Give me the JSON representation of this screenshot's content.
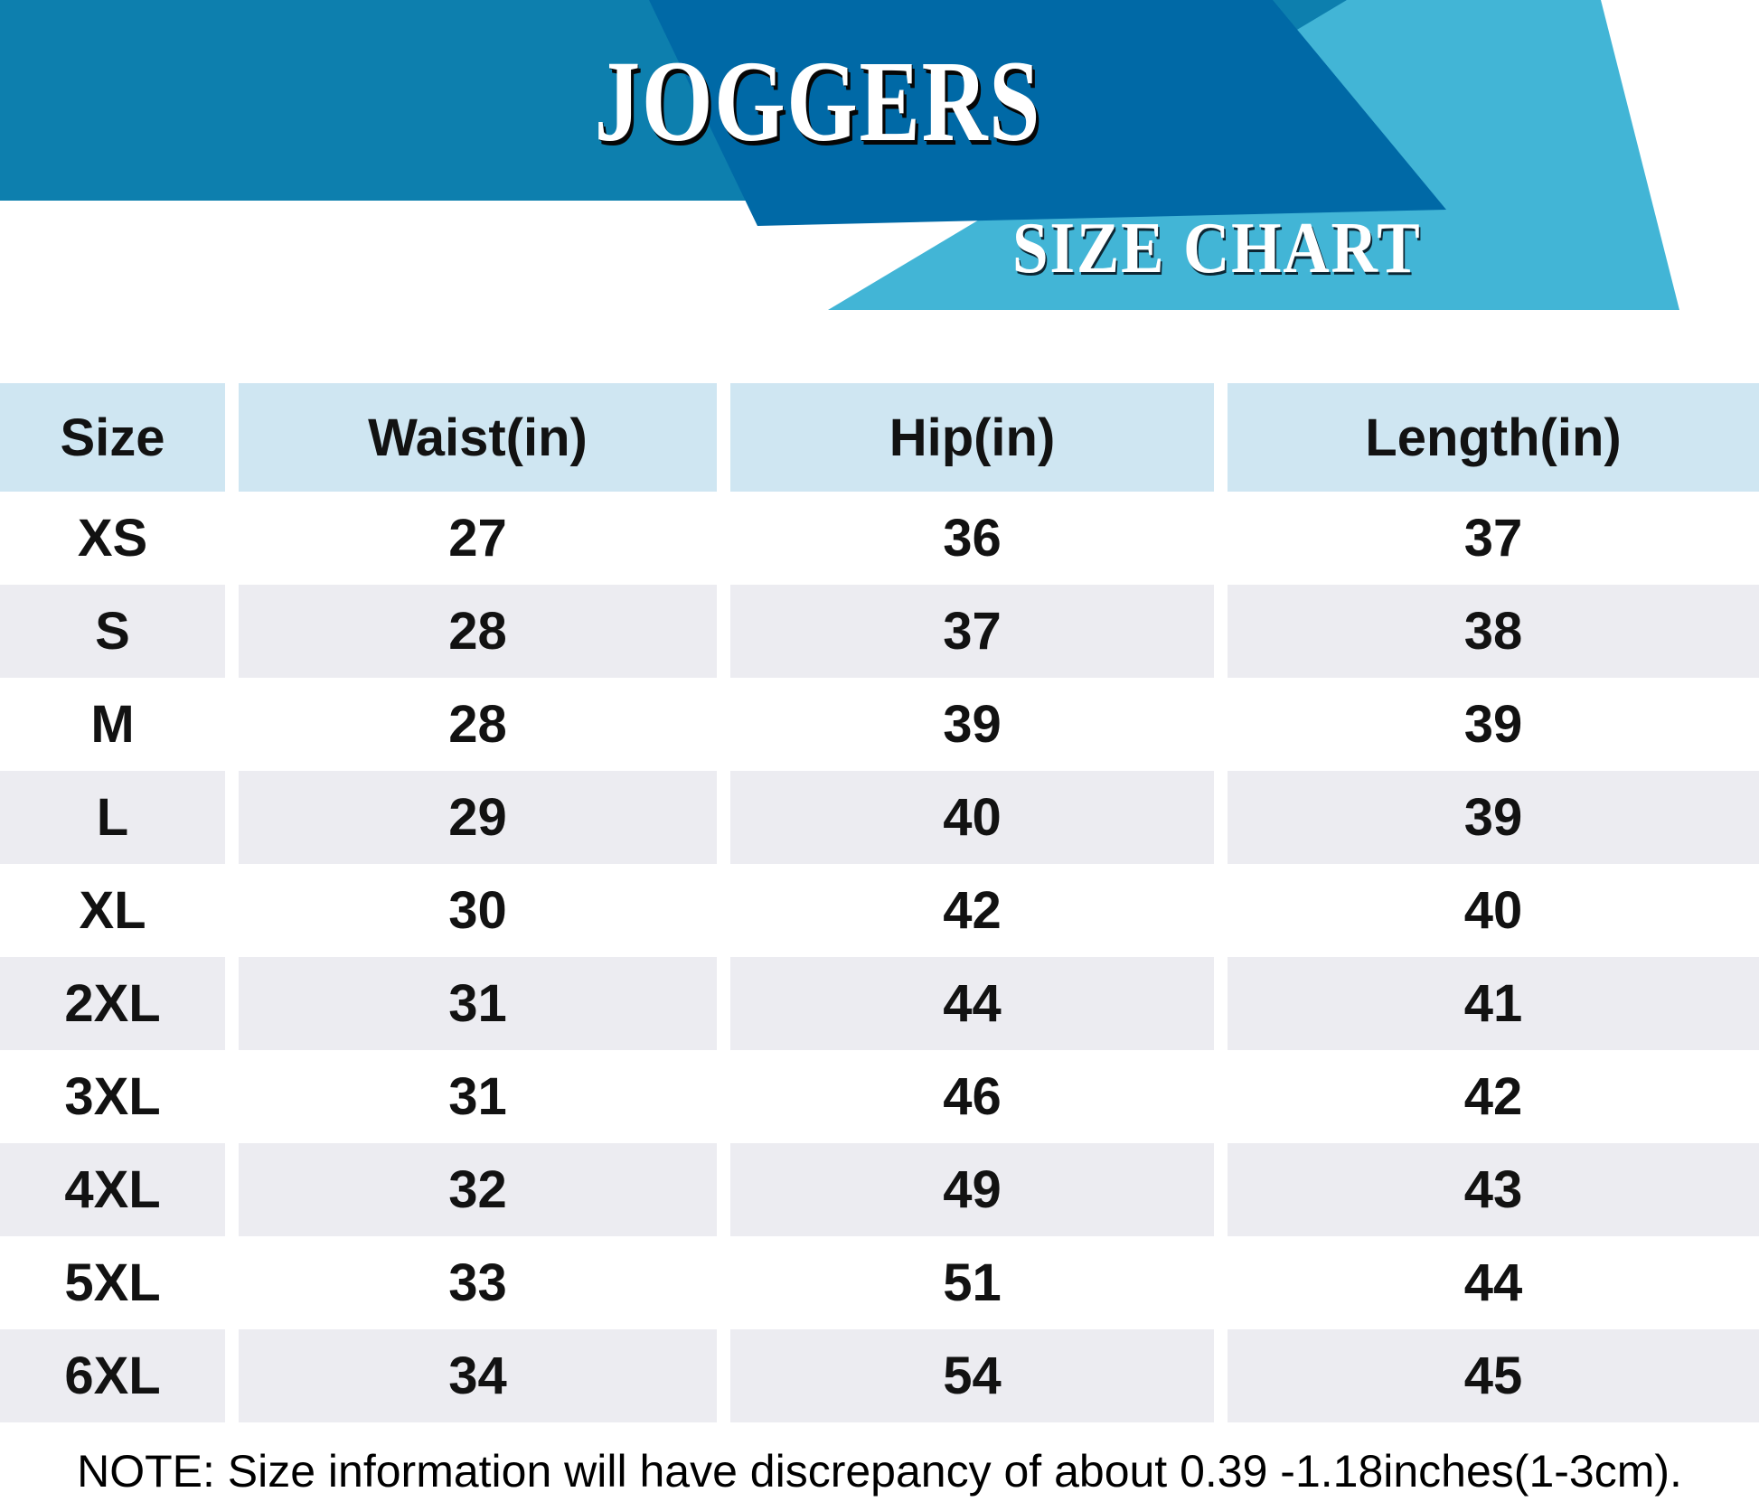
{
  "chart_data": {
    "type": "table",
    "title": "JOGGERS",
    "subtitle": "SIZE CHART",
    "columns": [
      "Size",
      "Waist(in)",
      "Hip(in)",
      "Length(in)"
    ],
    "rows": [
      [
        "XS",
        "27",
        "36",
        "37"
      ],
      [
        "S",
        "28",
        "37",
        "38"
      ],
      [
        "M",
        "28",
        "39",
        "39"
      ],
      [
        "L",
        "29",
        "40",
        "39"
      ],
      [
        "XL",
        "30",
        "42",
        "40"
      ],
      [
        "2XL",
        "31",
        "44",
        "41"
      ],
      [
        "3XL",
        "31",
        "46",
        "42"
      ],
      [
        "4XL",
        "32",
        "49",
        "43"
      ],
      [
        "5XL",
        "33",
        "51",
        "44"
      ],
      [
        "6XL",
        "34",
        "54",
        "45"
      ]
    ],
    "note": "NOTE: Size information will have discrepancy of about 0.39 -1.18inches(1-3cm).",
    "layout_hints": {
      "grid": "off",
      "stripe_pattern": "alternating white / light-gray data rows, light-blue header row, white column gaps"
    }
  },
  "colors": {
    "banner_band_blue": "#0d7fae",
    "banner_panel_dark_blue": "#0069a6",
    "banner_ribbon_cyan": "#42b5d6",
    "table_header_bg": "#cfe6f2",
    "table_stripe_bg": "#ececf1",
    "table_text": "#121212",
    "title_text": "#ffffff"
  }
}
